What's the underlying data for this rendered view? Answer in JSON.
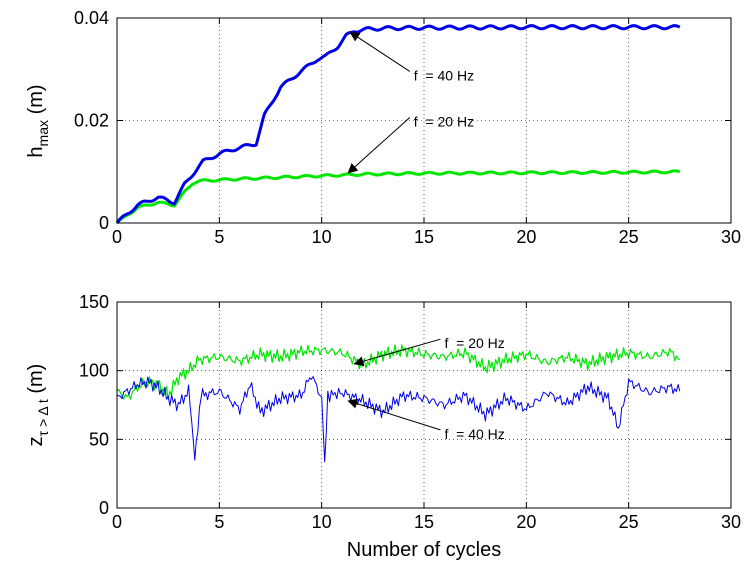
{
  "chart_data": [
    {
      "type": "line",
      "panel": "top",
      "ylabel_main": "h",
      "ylabel_sub": "max",
      "ylabel_unit": " (m)",
      "xlim": [
        0,
        30
      ],
      "ylim": [
        0,
        0.04
      ],
      "xticks": [
        0,
        5,
        10,
        15,
        20,
        25,
        30
      ],
      "xtick_labels": [
        "0",
        "5",
        "10",
        "15",
        "20",
        "25",
        "30"
      ],
      "yticks": [
        0,
        0.02,
        0.04
      ],
      "ytick_labels": [
        "0",
        "0.02",
        "0.04"
      ],
      "grid": true,
      "series": [
        {
          "color": "#00e600",
          "x": [
            0,
            1,
            2,
            2.8,
            3.3,
            3.7,
            4,
            6,
            8,
            10,
            12,
            15,
            20,
            25,
            27.5
          ],
          "y": [
            0,
            0.003,
            0.004,
            0.0035,
            0.006,
            0.0078,
            0.0082,
            0.0086,
            0.0089,
            0.0092,
            0.0095,
            0.0097,
            0.0098,
            0.0099,
            0.01
          ]
        },
        {
          "color": "#0000e6",
          "x": [
            0,
            1,
            2,
            2.8,
            3.3,
            3.7,
            4.2,
            5,
            5.8,
            6.8,
            7.2,
            8,
            8.8,
            9.8,
            10.2,
            10.8,
            11.2,
            11.6,
            12.2,
            13,
            15,
            20,
            25,
            27.5
          ],
          "y": [
            0,
            0.0035,
            0.005,
            0.004,
            0.0075,
            0.0095,
            0.012,
            0.0135,
            0.0145,
            0.0155,
            0.021,
            0.0265,
            0.029,
            0.032,
            0.0325,
            0.0345,
            0.0365,
            0.0375,
            0.0378,
            0.038,
            0.0381,
            0.0382,
            0.0382,
            0.0382
          ]
        }
      ],
      "annotations": [
        {
          "text": "f  = 40 Hz",
          "target_x": 11.4,
          "target_y": 0.0372,
          "label_x": 14.5,
          "label_y": 0.0288
        },
        {
          "text": "f  = 20 Hz",
          "target_x": 11.3,
          "target_y": 0.0098,
          "label_x": 14.5,
          "label_y": 0.0198
        }
      ]
    },
    {
      "type": "line",
      "panel": "bottom",
      "xlabel": "Number of cycles",
      "ylabel_main": "z",
      "ylabel_sub": "τ > Δ t",
      "ylabel_unit": " (m)",
      "xlim": [
        0,
        30
      ],
      "ylim": [
        0,
        150
      ],
      "xticks": [
        0,
        5,
        10,
        15,
        20,
        25,
        30
      ],
      "xtick_labels": [
        "0",
        "5",
        "10",
        "15",
        "20",
        "25",
        "30"
      ],
      "yticks": [
        0,
        50,
        100,
        150
      ],
      "ytick_labels": [
        "0",
        "50",
        "100",
        "150"
      ],
      "grid": true,
      "series": [
        {
          "color": "#00e600",
          "x": [
            0,
            0.5,
            1,
            1.5,
            2,
            2.5,
            3,
            3.5,
            4,
            5,
            6,
            7,
            8,
            9,
            10,
            11,
            12,
            13,
            14,
            15,
            16,
            17,
            18,
            19,
            20,
            21,
            22,
            23,
            24,
            25,
            26,
            27,
            27.5
          ],
          "y": [
            85,
            80,
            88,
            92,
            90,
            82,
            95,
            100,
            108,
            110,
            107,
            112,
            110,
            114,
            115,
            113,
            104,
            112,
            115,
            112,
            110,
            113,
            102,
            108,
            112,
            106,
            110,
            105,
            110,
            113,
            110,
            114,
            108
          ]
        },
        {
          "color": "#0000e6",
          "x": [
            0,
            0.5,
            1,
            1.5,
            2,
            2.5,
            3,
            3.5,
            3.8,
            4.1,
            5,
            6,
            6.5,
            7,
            8,
            9,
            9.5,
            10,
            10.15,
            10.3,
            11,
            12,
            13,
            14,
            15,
            16,
            17,
            18,
            19,
            20,
            21,
            22,
            23,
            24,
            24.5,
            25,
            26,
            27,
            27.5
          ],
          "y": [
            80,
            85,
            90,
            92,
            88,
            80,
            75,
            85,
            38,
            82,
            85,
            72,
            90,
            70,
            80,
            82,
            97,
            80,
            30,
            82,
            84,
            78,
            70,
            82,
            80,
            75,
            82,
            68,
            80,
            72,
            84,
            76,
            88,
            80,
            58,
            92,
            84,
            88,
            85
          ]
        }
      ],
      "annotations": [
        {
          "text": "f  = 20 Hz",
          "target_x": 11.6,
          "target_y": 105,
          "label_x": 16,
          "label_y": 120
        },
        {
          "text": "f  = 40 Hz",
          "target_x": 11.3,
          "target_y": 78,
          "label_x": 16,
          "label_y": 54
        }
      ]
    }
  ]
}
